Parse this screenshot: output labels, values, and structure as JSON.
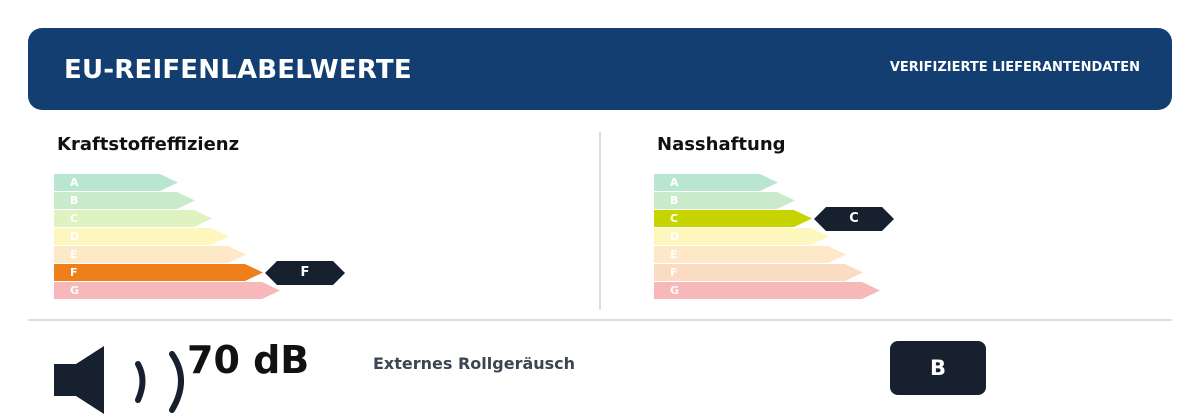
{
  "header": {
    "title": "EU-REIFENLABELWERTE",
    "badge": "VERIFIZIERTE LIEFERANTENDATEN"
  },
  "fuel_efficiency": {
    "title": "Kraftstoffeffizienz",
    "selected": "F",
    "classes": [
      {
        "label": "A",
        "color": "#b8e6cf"
      },
      {
        "label": "B",
        "color": "#c9ebcb"
      },
      {
        "label": "C",
        "color": "#dff2c2"
      },
      {
        "label": "D",
        "color": "#fdf7be"
      },
      {
        "label": "E",
        "color": "#fde8c7"
      },
      {
        "label": "F",
        "color": "#ef7f1a"
      },
      {
        "label": "G",
        "color": "#f6b8b8"
      }
    ]
  },
  "wet_grip": {
    "title": "Nasshaftung",
    "selected": "C",
    "classes": [
      {
        "label": "A",
        "color": "#b8e6cf"
      },
      {
        "label": "B",
        "color": "#c9ebcb"
      },
      {
        "label": "C",
        "color": "#c6d500"
      },
      {
        "label": "D",
        "color": "#fdf7be"
      },
      {
        "label": "E",
        "color": "#fde8c7"
      },
      {
        "label": "F",
        "color": "#fbdcc3"
      },
      {
        "label": "G",
        "color": "#f6b8b8"
      }
    ]
  },
  "noise": {
    "value": "70 dB",
    "label": "Externes Rollgeräusch",
    "class": "B"
  }
}
